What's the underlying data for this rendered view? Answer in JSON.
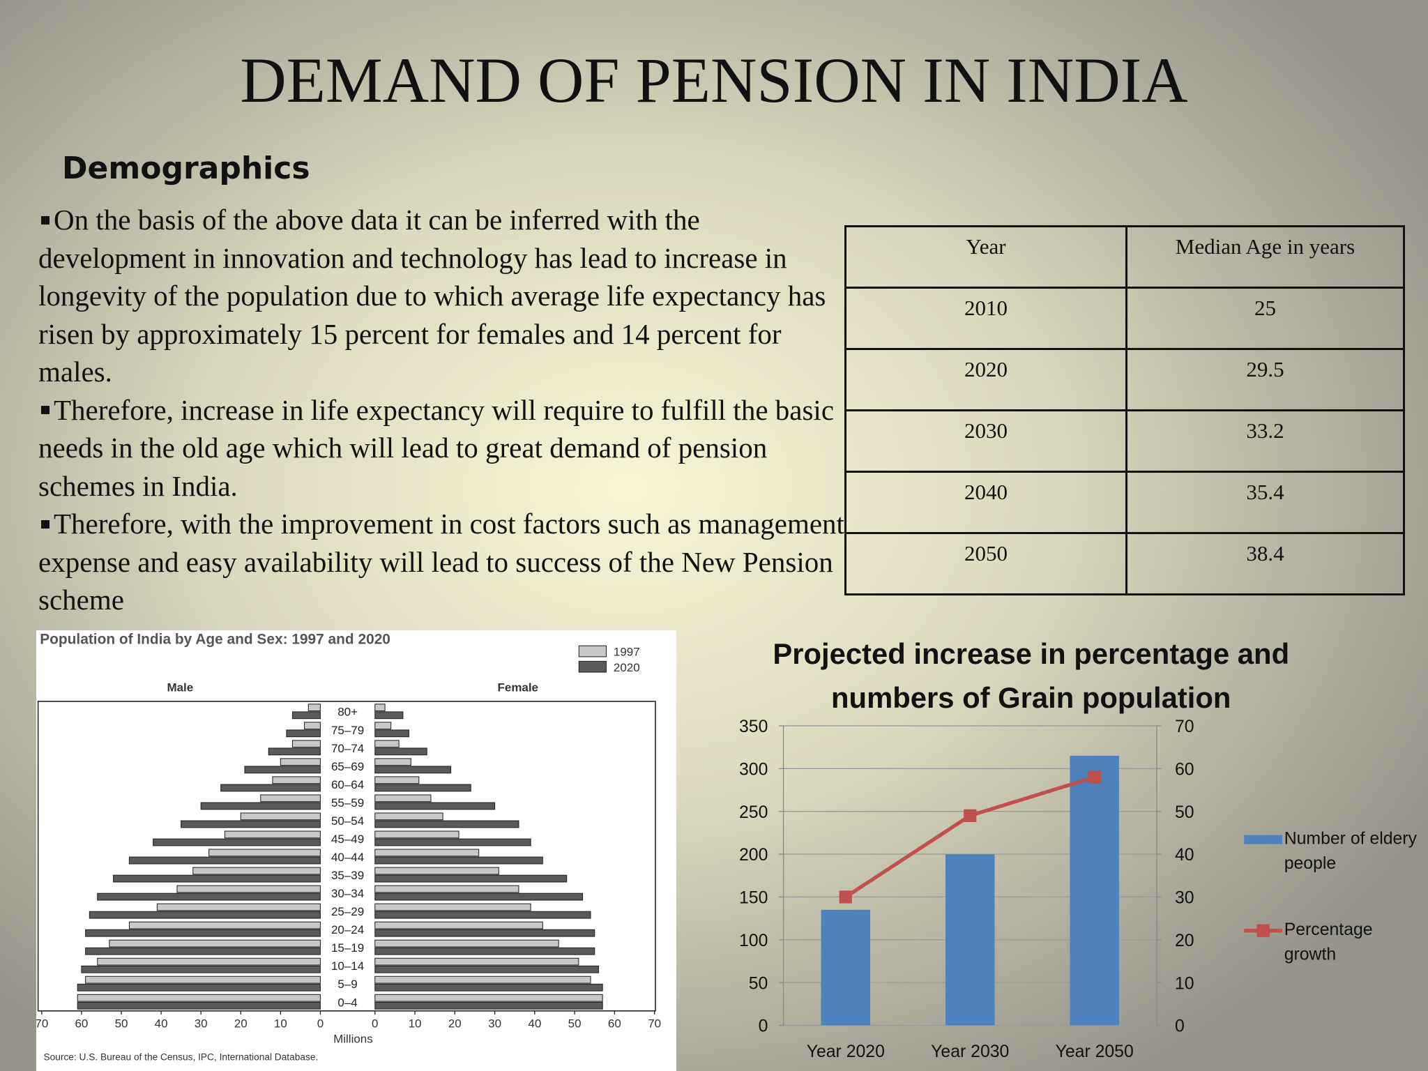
{
  "title": "DEMAND OF PENSION IN INDIA",
  "subtitle": "Demographics",
  "bullets": [
    "On the basis of the above data it can be inferred with the development  in innovation and technology has lead to increase in longevity of the population due to which average life expectancy has risen by approximately 15 percent for females and 14 percent for males.",
    "Therefore, increase in life expectancy will require to fulfill the basic needs in the old age which will lead to great demand of pension schemes in India.",
    "Therefore, with the improvement in cost factors such as management expense and easy availability will lead to success of the New Pension scheme"
  ],
  "table": {
    "header": [
      "Year",
      "Median Age in years"
    ],
    "rows": [
      [
        "2010",
        "25"
      ],
      [
        "2020",
        "29.5"
      ],
      [
        "2030",
        "33.2"
      ],
      [
        "2040",
        "35.4"
      ],
      [
        "2050",
        "38.4"
      ]
    ]
  },
  "chart_data": [
    {
      "type": "pyramid",
      "title": "Population of India by Age and Sex:  1997 and 2020",
      "left_label": "Male",
      "right_label": "Female",
      "xlabel": "Millions",
      "source": "Source:  U.S. Bureau of the Census, IPC, International Database.",
      "categories": [
        "80+",
        "75–79",
        "70–74",
        "65–69",
        "60–64",
        "55–59",
        "50–54",
        "45–49",
        "40–44",
        "35–39",
        "30–34",
        "25–29",
        "20–24",
        "15–19",
        "10–14",
        "5–9",
        "0–4"
      ],
      "series": [
        {
          "name": "1997",
          "color": "#c8c8c8",
          "male": [
            3,
            4,
            7,
            10,
            12,
            15,
            20,
            24,
            28,
            32,
            36,
            41,
            48,
            53,
            56,
            59,
            61
          ],
          "female": [
            2.5,
            4,
            6,
            9,
            11,
            14,
            17,
            21,
            26,
            31,
            36,
            39,
            42,
            46,
            51,
            54,
            57
          ]
        },
        {
          "name": "2020",
          "color": "#5a5a5a",
          "male": [
            7,
            8.5,
            13,
            19,
            25,
            30,
            35,
            42,
            48,
            52,
            56,
            58,
            59,
            59,
            60,
            61,
            61
          ],
          "female": [
            7,
            8.5,
            13,
            19,
            24,
            30,
            36,
            39,
            42,
            48,
            52,
            54,
            55,
            55,
            56,
            57,
            57
          ]
        }
      ],
      "xlim": [
        0,
        70
      ],
      "xticks": [
        0,
        10,
        20,
        30,
        40,
        50,
        60,
        70
      ]
    },
    {
      "type": "bar",
      "title": "Projected increase in percentage and numbers of Grain population",
      "categories": [
        "Year 2020",
        "Year 2030",
        "Year 2050"
      ],
      "series": [
        {
          "name": "Number of eldery people",
          "type": "bar",
          "color": "#4f81bd",
          "values": [
            135,
            200,
            315
          ]
        },
        {
          "name": "Percentage growth",
          "type": "line",
          "color": "#c0504d",
          "axis": "y2",
          "values": [
            30,
            49,
            58
          ]
        }
      ],
      "ylim": [
        0,
        350
      ],
      "yticks": [
        0,
        50,
        100,
        150,
        200,
        250,
        300,
        350
      ],
      "y2lim": [
        0,
        70
      ],
      "y2ticks": [
        0,
        10,
        20,
        30,
        40,
        50,
        60,
        70
      ],
      "grid": true,
      "legend": "right"
    }
  ]
}
